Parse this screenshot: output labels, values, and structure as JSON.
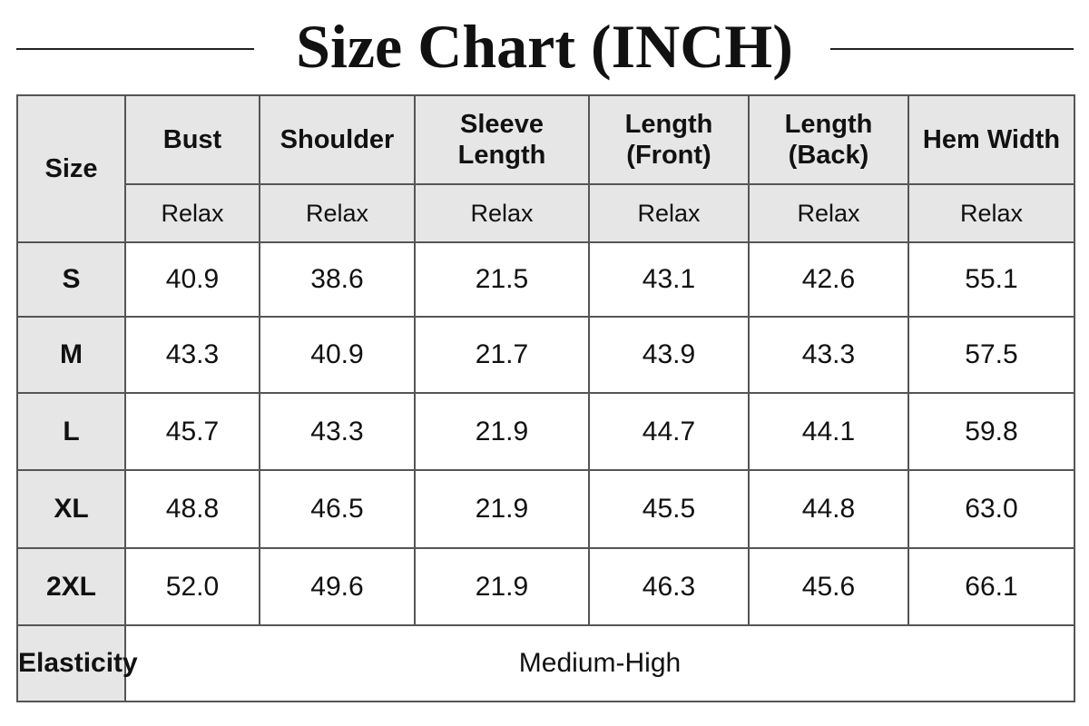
{
  "title": "Size Chart (INCH)",
  "table": {
    "size_header": "Size",
    "columns": [
      {
        "lines": [
          "Bust"
        ],
        "fit": "Relax"
      },
      {
        "lines": [
          "Shoulder"
        ],
        "fit": "Relax"
      },
      {
        "lines": [
          "Sleeve",
          "Length"
        ],
        "fit": "Relax"
      },
      {
        "lines": [
          "Length",
          "(Front)"
        ],
        "fit": "Relax"
      },
      {
        "lines": [
          "Length",
          "(Back)"
        ],
        "fit": "Relax"
      },
      {
        "lines": [
          "Hem Width"
        ],
        "fit": "Relax"
      }
    ],
    "rows": [
      {
        "size": "S",
        "values": [
          "40.9",
          "38.6",
          "21.5",
          "43.1",
          "42.6",
          "55.1"
        ]
      },
      {
        "size": "M",
        "values": [
          "43.3",
          "40.9",
          "21.7",
          "43.9",
          "43.3",
          "57.5"
        ]
      },
      {
        "size": "L",
        "values": [
          "45.7",
          "43.3",
          "21.9",
          "44.7",
          "44.1",
          "59.8"
        ]
      },
      {
        "size": "XL",
        "values": [
          "48.8",
          "46.5",
          "21.9",
          "45.5",
          "44.8",
          "63.0"
        ]
      },
      {
        "size": "2XL",
        "values": [
          "52.0",
          "49.6",
          "21.9",
          "46.3",
          "45.6",
          "66.1"
        ]
      }
    ],
    "footer": {
      "label": "Elasticity",
      "value": "Medium-High"
    }
  }
}
